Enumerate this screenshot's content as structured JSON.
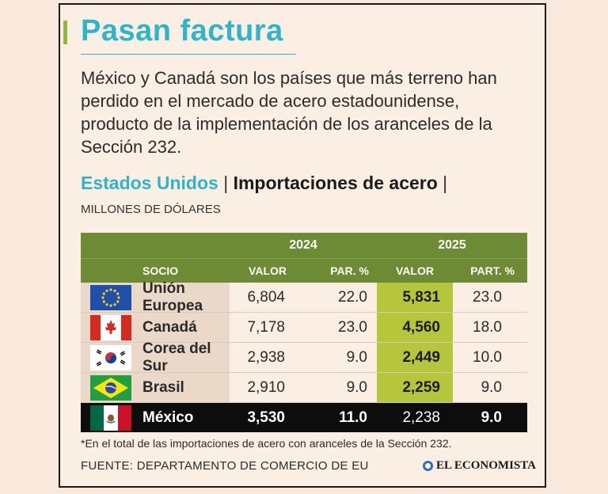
{
  "title": "Pasan factura",
  "description": "México y Canadá son los países que más terreno han perdido en el mercado de acero estadounidense, producto de la implementación de los aranceles de la Sección 232.",
  "subtitle": {
    "part1": "Estados Unidos",
    "separator": "|",
    "part2": "Importaciones de acero",
    "separator_end": "|"
  },
  "units": "MILLONES DE DÓLARES",
  "table": {
    "years": [
      "2024",
      "2025"
    ],
    "headers": {
      "socio": "SOCIO",
      "valor_2024": "VALOR",
      "par_2024": "PAR. %",
      "valor_2025": "VALOR",
      "part_2025": "PART. %"
    },
    "rows": [
      {
        "country": "Unión Europea",
        "flag": "eu-flag",
        "valor_2024": "6,804",
        "par_2024": "22.0",
        "valor_2025": "5,831",
        "part_2025": "23.0"
      },
      {
        "country": "Canadá",
        "flag": "canada-flag",
        "valor_2024": "7,178",
        "par_2024": "23.0",
        "valor_2025": "4,560",
        "part_2025": "18.0"
      },
      {
        "country": "Corea del Sur",
        "flag": "south-korea-flag",
        "valor_2024": "2,938",
        "par_2024": "9.0",
        "valor_2025": "2,449",
        "part_2025": "10.0"
      },
      {
        "country": "Brasil",
        "flag": "brazil-flag",
        "valor_2024": "2,910",
        "par_2024": "9.0",
        "valor_2025": "2,259",
        "part_2025": "9.0"
      },
      {
        "country": "México",
        "flag": "mexico-flag",
        "valor_2024": "3,530",
        "par_2024": "11.0",
        "valor_2025": "2,238",
        "part_2025": "9.0"
      }
    ]
  },
  "footnote": "*En el total de las importaciones de acero con aranceles de la Sección 232.",
  "source": "FUENTE: DEPARTAMENTO DE COMERCIO DE EU",
  "brand": "EL ECONOMISTA",
  "colors": {
    "accent": "#2cb5cb",
    "header_green": "#6d8a34",
    "highlight_lime": "#b6c63a",
    "mexico_row": "#0d0d0d"
  },
  "chart_data": {
    "type": "table",
    "title": "Importaciones de acero",
    "units": "MILLONES DE DÓLARES",
    "columns": [
      "SOCIO",
      "VALOR 2024",
      "PAR. % 2024",
      "VALOR 2025",
      "PART. % 2025"
    ],
    "categories": [
      "Unión Europea",
      "Canadá",
      "Corea del Sur",
      "Brasil",
      "México"
    ],
    "series": [
      {
        "name": "VALOR 2024",
        "values": [
          6804,
          7178,
          2938,
          2910,
          3530
        ]
      },
      {
        "name": "PAR. % 2024",
        "values": [
          22.0,
          23.0,
          9.0,
          9.0,
          11.0
        ]
      },
      {
        "name": "VALOR 2025",
        "values": [
          5831,
          4560,
          2449,
          2259,
          2238
        ]
      },
      {
        "name": "PART. % 2025",
        "values": [
          23.0,
          18.0,
          10.0,
          9.0,
          9.0
        ]
      }
    ]
  }
}
